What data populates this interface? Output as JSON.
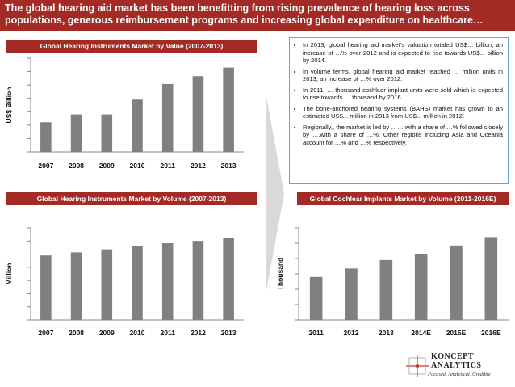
{
  "header": {
    "title": "The global hearing aid market has been benefitting from rising prevalence of hearing loss across populations, generous reimbursement programs and increasing global expenditure on healthcare…"
  },
  "colors": {
    "brand": "#a42a25",
    "bar": "#808080",
    "box_border": "#5aa9d6"
  },
  "sections": {
    "value_title": "Global Hearing Instruments Market by Value (2007-2013)",
    "volume_title": "Global Hearing Instruments Market by Volume (2007-2013)",
    "cochlear_title": "Global Cochlear Implants Market by Volume (2011-2016E)"
  },
  "bullets": [
    "In 2013, global hearing aid market’s valuation totaled US$… billion, an increase of …% over 2012 and is expected to rise towards US$... billion by 2014.",
    "In volume terms, global hearing aid market reached … million units in 2013, an increase of …% over 2012.",
    "In 2011, … thousand cochlear implant units were sold which is expected to rise towards … thousand by 2016.",
    "The bone-anchored hearing systems (BAHS) market has grown to an estimated US$... million in 2013 from US$... million in 2012.",
    "Regionally,, the market is led by …… with a share of …% followed closely by ….with a share of …%. Other regions including Asia and Oceania account for …% and …% respectively."
  ],
  "chart_data": [
    {
      "type": "bar",
      "title": "Global Hearing Instruments Market by Value (2007-2013)",
      "ylabel": "US$ Billion",
      "categories": [
        "2007",
        "2008",
        "2009",
        "2010",
        "2011",
        "2012",
        "2013"
      ],
      "values": [
        38,
        48,
        48,
        67,
        87,
        97,
        108
      ],
      "ylim": [
        0,
        120
      ],
      "yticks": 7,
      "grid": false
    },
    {
      "type": "bar",
      "title": "Global Hearing Instruments Market by Volume (2007-2013)",
      "ylabel": "Million",
      "categories": [
        "2007",
        "2008",
        "2009",
        "2010",
        "2011",
        "2012",
        "2013"
      ],
      "values": [
        84,
        88,
        92,
        96,
        100,
        103,
        107
      ],
      "ylim": [
        0,
        120
      ],
      "yticks": 7,
      "grid": false
    },
    {
      "type": "bar",
      "title": "Global Cochlear Implants Market by Volume (2011-2016E)",
      "ylabel": "Thousand",
      "categories": [
        "2011",
        "2012",
        "2013",
        "2014E",
        "2015E",
        "2016E"
      ],
      "values": [
        56,
        67,
        78,
        86,
        97,
        108
      ],
      "ylim": [
        0,
        120
      ],
      "yticks": 6,
      "grid": false
    }
  ],
  "logo": {
    "name_line1": "KONCEPT",
    "name_line2": "ANALYTICS",
    "tagline": "Focused, Analytical, Credible"
  }
}
